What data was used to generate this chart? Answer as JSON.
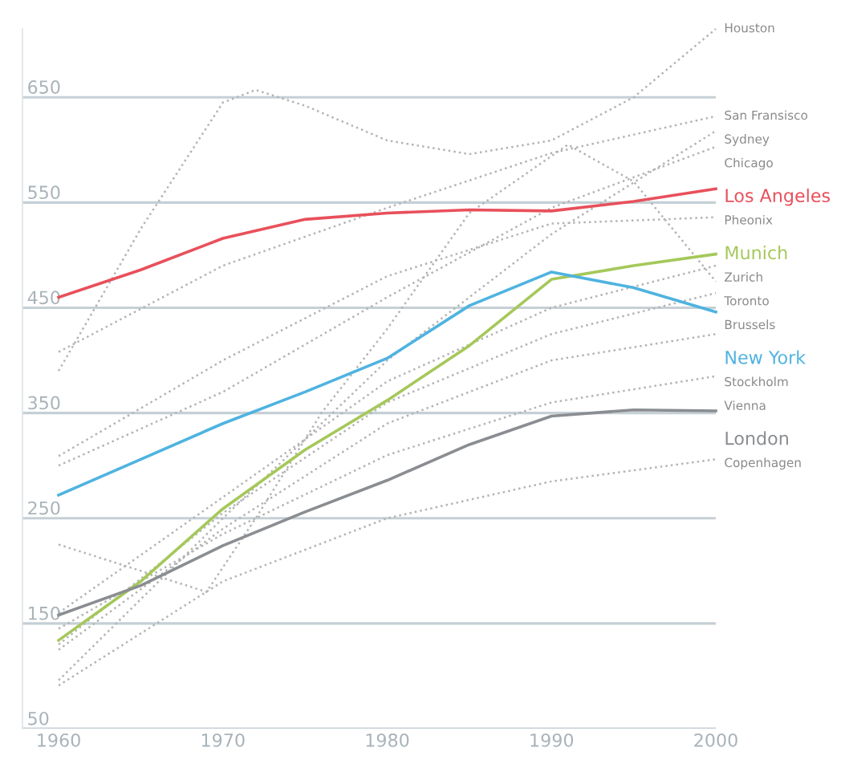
{
  "chart_data": {
    "type": "line",
    "grid": "y",
    "legend": false,
    "marker": "none",
    "xlim": [
      1957.8,
      2000
    ],
    "xticks": [
      1960,
      1970,
      1980,
      1990,
      2000
    ],
    "ylim": [
      50,
      715
    ],
    "yticks": [
      50,
      150,
      250,
      350,
      450,
      550,
      650
    ],
    "series": [
      {
        "name": "Houston",
        "color": "#b4b4b4",
        "line_style": "dotted",
        "x": [
          1960,
          1965,
          1970,
          1972,
          1975,
          1980,
          1985,
          1990,
          1995,
          2000
        ],
        "values": [
          390,
          525,
          645,
          657,
          642,
          609,
          596,
          609,
          650,
          715
        ]
      },
      {
        "name": "San Fransisco",
        "color": "#b4b4b4",
        "line_style": "dotted",
        "x": [
          1960,
          1970,
          1980,
          1990,
          2000
        ],
        "values": [
          408,
          490,
          545,
          597,
          632
        ]
      },
      {
        "name": "Sydney",
        "color": "#b4b4b4",
        "line_style": "dotted",
        "x": [
          1960,
          1970,
          1980,
          1990,
          2000
        ],
        "values": [
          96,
          250,
          400,
          520,
          618
        ]
      },
      {
        "name": "Chicago",
        "color": "#b4b4b4",
        "line_style": "dotted",
        "x": [
          1960,
          1970,
          1980,
          1990,
          2000
        ],
        "values": [
          300,
          370,
          460,
          545,
          603
        ]
      },
      {
        "name": "Los Angeles",
        "color": "#e8505b",
        "line_style": "solid",
        "x": [
          1960,
          1965,
          1970,
          1975,
          1980,
          1985,
          1990,
          1995,
          2000
        ],
        "values": [
          460,
          486,
          516,
          534,
          540,
          543,
          542,
          551,
          563
        ]
      },
      {
        "name": "Pheonix",
        "color": "#b4b4b4",
        "line_style": "dotted",
        "x": [
          1960,
          1970,
          1980,
          1990,
          2000
        ],
        "values": [
          309,
          400,
          480,
          530,
          536
        ]
      },
      {
        "name": "Munich",
        "color": "#a5c85a",
        "line_style": "solid",
        "x": [
          1960,
          1965,
          1970,
          1975,
          1980,
          1985,
          1990,
          1995,
          2000
        ],
        "values": [
          134,
          190,
          259,
          315,
          362,
          414,
          477,
          490,
          501
        ]
      },
      {
        "name": "Zurich",
        "color": "#b4b4b4",
        "line_style": "dotted",
        "x": [
          1960,
          1970,
          1980,
          1990,
          2000
        ],
        "values": [
          160,
          270,
          380,
          450,
          490
        ]
      },
      {
        "name": "Toronto",
        "color": "#b4b4b4",
        "line_style": "dotted",
        "x": [
          1960,
          1965,
          1969,
          1972,
          1976,
          1980,
          1985,
          1991,
          1995,
          2000
        ],
        "values": [
          225,
          200,
          180,
          250,
          350,
          430,
          540,
          605,
          570,
          475
        ]
      },
      {
        "name": "Brussels",
        "color": "#b4b4b4",
        "line_style": "dotted",
        "x": [
          1960,
          1970,
          1980,
          1990,
          2000
        ],
        "values": [
          130,
          255,
          360,
          425,
          464
        ]
      },
      {
        "name": "New York",
        "color": "#4fb3e0",
        "line_style": "solid",
        "x": [
          1960,
          1965,
          1970,
          1975,
          1980,
          1985,
          1990,
          1995,
          2000
        ],
        "values": [
          272,
          306,
          340,
          370,
          402,
          452,
          484,
          469,
          446
        ]
      },
      {
        "name": "Stockholm",
        "color": "#b4b4b4",
        "line_style": "dotted",
        "x": [
          1960,
          1970,
          1980,
          1990,
          2000
        ],
        "values": [
          125,
          240,
          340,
          400,
          425
        ]
      },
      {
        "name": "Vienna",
        "color": "#b4b4b4",
        "line_style": "dotted",
        "x": [
          1960,
          1970,
          1980,
          1990,
          2000
        ],
        "values": [
          145,
          235,
          310,
          360,
          385
        ]
      },
      {
        "name": "London",
        "color": "#8a8d91",
        "line_style": "solid",
        "x": [
          1960,
          1965,
          1970,
          1975,
          1980,
          1985,
          1990,
          1995,
          2000
        ],
        "values": [
          158,
          186,
          224,
          256,
          286,
          320,
          347,
          353,
          352
        ]
      },
      {
        "name": "Copenhagen",
        "color": "#b4b4b4",
        "line_style": "dotted",
        "x": [
          1960,
          1970,
          1980,
          1990,
          2000
        ],
        "values": [
          91,
          190,
          250,
          285,
          306
        ]
      }
    ]
  }
}
